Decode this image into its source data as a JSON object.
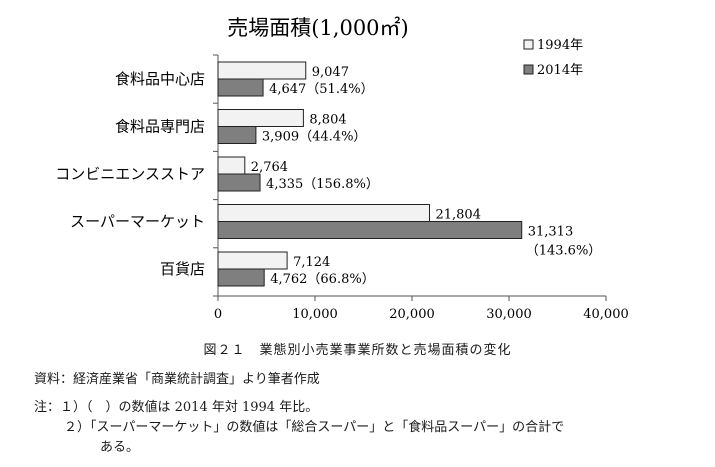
{
  "chart_data": {
    "type": "bar",
    "orientation": "horizontal",
    "title": "売場面積(1,000㎡)",
    "categories": [
      "食料品中心店",
      "食料品専門店",
      "コンビニエンスストア",
      "スーパーマーケット",
      "百貨店"
    ],
    "series": [
      {
        "name": "1994年",
        "values": [
          9047,
          8804,
          2764,
          21804,
          7124
        ],
        "color": "#f2f2f2",
        "labels": [
          "9,047",
          "8,804",
          "2,764",
          "21,804",
          "7,124"
        ]
      },
      {
        "name": "2014年",
        "values": [
          4647,
          3909,
          4335,
          31313,
          4762
        ],
        "color": "#7f7f7f",
        "labels": [
          "4,647（51.4%）",
          "3,909（44.4%）",
          "4,335（156.8%）",
          "31,313",
          "4,762（66.8%）"
        ],
        "extra_label_skyscraper": "（143.6%）"
      }
    ],
    "xlim": [
      0,
      40000
    ],
    "x_ticks": [
      "0",
      "10,000",
      "20,000",
      "30,000",
      "40,000"
    ],
    "grid": false,
    "legend_position": "top-right"
  },
  "caption": "図２１　業態別小売業事業所数と売場面積の変化",
  "source": "資料：経済産業省「商業統計調査」より筆者作成",
  "note_1": "注：１）（　）の数値は 2014 年対 1994 年比。",
  "note_2": "２）「スーパーマーケット」の数値は「総合スーパー」と「食料品スーパー」の合計で",
  "note_2_cont": "ある。"
}
